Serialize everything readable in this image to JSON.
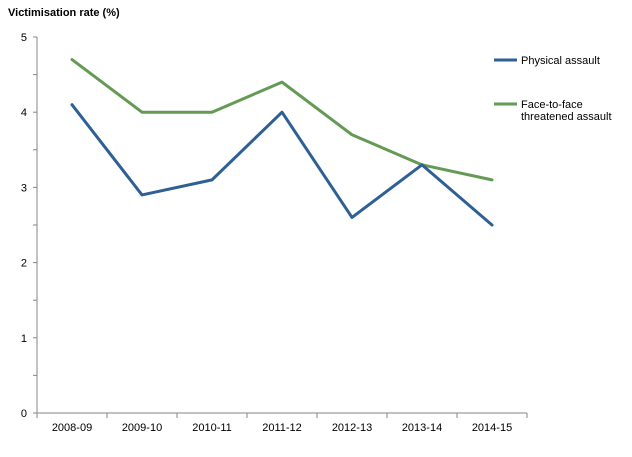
{
  "chart_data": {
    "type": "line",
    "title": "",
    "xlabel": "",
    "ylabel": "Victimisation rate (%)",
    "categories": [
      "2008-09",
      "2009-10",
      "2010-11",
      "2011-12",
      "2012-13",
      "2013-14",
      "2014-15"
    ],
    "ylim": [
      0,
      5
    ],
    "yticks": [
      "0",
      "1",
      "2",
      "3",
      "4",
      "5"
    ],
    "grid": false,
    "legend_position": "right",
    "series": [
      {
        "name": "Physical assault",
        "name_lines": [
          "Physical assault"
        ],
        "color": "#2e5f95",
        "values": [
          4.1,
          2.9,
          3.1,
          4.0,
          2.6,
          3.3,
          2.5
        ]
      },
      {
        "name": "Face-to-face threatened assault",
        "name_lines": [
          "Face-to-face",
          "threatened assault"
        ],
        "color": "#659a55",
        "values": [
          4.7,
          4.0,
          4.0,
          4.4,
          3.7,
          3.3,
          3.1
        ]
      }
    ]
  }
}
